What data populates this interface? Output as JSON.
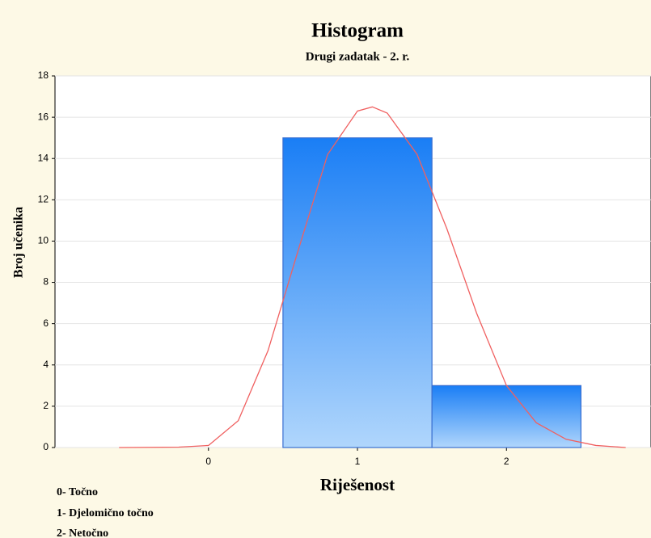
{
  "chart_data": {
    "type": "histogram",
    "title": "Histogram",
    "subtitle": "Drugi zadatak - 2. r.",
    "x_label": "Riješenost",
    "y_label": "Broj učenika",
    "bins": [
      -0.5,
      0.5,
      1.5,
      2.5
    ],
    "counts": [
      0,
      15,
      3
    ],
    "color": "#1a7ef5",
    "fit_curve": {
      "color": "#f06060",
      "x": [
        -0.6,
        -0.2,
        0,
        0.2,
        0.4,
        0.6,
        0.8,
        1.0,
        1.1,
        1.2,
        1.4,
        1.6,
        1.8,
        2.0,
        2.2,
        2.4,
        2.6,
        2.8
      ],
      "y": [
        0,
        0.02,
        0.1,
        1.3,
        4.7,
        9.5,
        14.2,
        16.3,
        16.5,
        16.2,
        14.2,
        10.6,
        6.5,
        3.0,
        1.2,
        0.4,
        0.1,
        0
      ]
    },
    "xlim": [
      -1.03,
      2.97
    ],
    "ylim": [
      0,
      18
    ],
    "xticks": [
      0,
      1,
      2
    ],
    "yticks": [
      0,
      2,
      4,
      6,
      8,
      10,
      12,
      14,
      16,
      18
    ],
    "grid": true,
    "notes": [
      "0- Točno",
      "1- Djelomično točno",
      "2- Netočno"
    ]
  }
}
